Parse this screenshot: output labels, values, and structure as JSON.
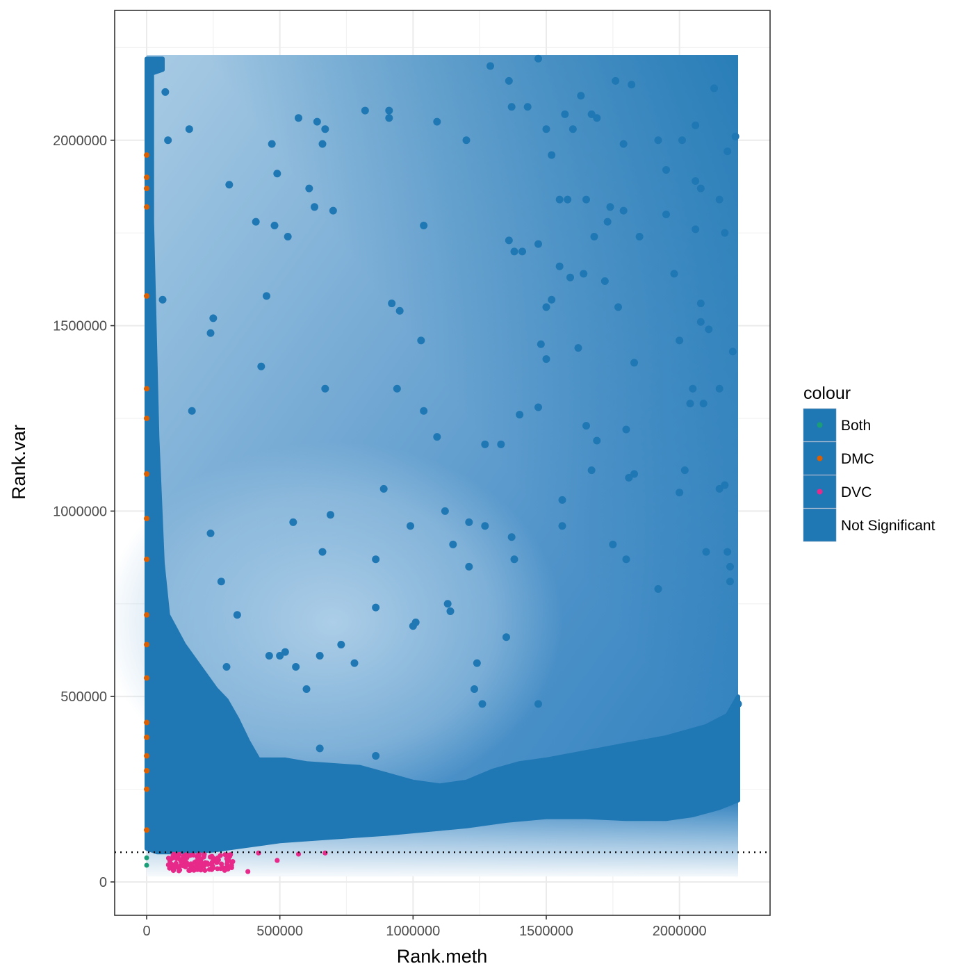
{
  "chart_data": {
    "type": "scatter",
    "title": "",
    "xlabel": "Rank.meth",
    "ylabel": "Rank.var",
    "xlim": [
      -120000,
      2340000
    ],
    "ylim": [
      -90000,
      2350000
    ],
    "x_ticks": [
      0,
      500000,
      1000000,
      1500000,
      2000000
    ],
    "x_tick_labels": [
      "0",
      "500000",
      "1000000",
      "1500000",
      "2000000"
    ],
    "y_ticks": [
      0,
      500000,
      1000000,
      1500000,
      2000000
    ],
    "y_tick_labels": [
      "0",
      "500000",
      "1000000",
      "1500000",
      "2000000"
    ],
    "grid": true,
    "threshold_line": {
      "y": 80000,
      "style": "dotted"
    },
    "density_region": {
      "x": [
        0,
        2220000
      ],
      "y": [
        15000,
        2230000
      ]
    },
    "legend": {
      "title": "colour",
      "placement": "right",
      "items": [
        {
          "label": "Both",
          "color": "#1b9e77"
        },
        {
          "label": "DMC",
          "color": "#d95f02"
        },
        {
          "label": "DVC",
          "color": "#e7298a"
        },
        {
          "label": "Not Significant",
          "color": "#1f78b4"
        }
      ]
    },
    "series": [
      {
        "name": "Not Significant",
        "color": "#1f78b4",
        "points": [
          [
            1290000,
            2200000
          ],
          [
            1470000,
            2220000
          ],
          [
            1360000,
            2160000
          ],
          [
            1370000,
            2090000
          ],
          [
            1430000,
            2090000
          ],
          [
            1630000,
            2120000
          ],
          [
            1570000,
            2070000
          ],
          [
            1600000,
            2030000
          ],
          [
            1500000,
            2030000
          ],
          [
            1520000,
            1960000
          ],
          [
            1670000,
            2070000
          ],
          [
            1690000,
            2060000
          ],
          [
            1760000,
            2160000
          ],
          [
            1820000,
            2150000
          ],
          [
            1790000,
            1990000
          ],
          [
            1920000,
            2000000
          ],
          [
            1950000,
            1920000
          ],
          [
            2010000,
            2000000
          ],
          [
            2060000,
            2040000
          ],
          [
            2130000,
            2140000
          ],
          [
            2210000,
            2010000
          ],
          [
            2180000,
            1970000
          ],
          [
            2060000,
            1890000
          ],
          [
            2080000,
            1870000
          ],
          [
            2150000,
            1840000
          ],
          [
            2170000,
            1750000
          ],
          [
            2060000,
            1760000
          ],
          [
            1950000,
            1800000
          ],
          [
            1850000,
            1740000
          ],
          [
            1790000,
            1810000
          ],
          [
            1740000,
            1820000
          ],
          [
            1650000,
            1840000
          ],
          [
            1550000,
            1840000
          ],
          [
            1580000,
            1840000
          ],
          [
            1680000,
            1740000
          ],
          [
            1730000,
            1780000
          ],
          [
            1590000,
            1630000
          ],
          [
            1500000,
            1550000
          ],
          [
            1520000,
            1570000
          ],
          [
            1470000,
            1720000
          ],
          [
            1410000,
            1700000
          ],
          [
            1360000,
            1730000
          ],
          [
            1380000,
            1700000
          ],
          [
            1550000,
            1660000
          ],
          [
            1640000,
            1640000
          ],
          [
            1720000,
            1620000
          ],
          [
            1770000,
            1550000
          ],
          [
            1620000,
            1440000
          ],
          [
            1480000,
            1450000
          ],
          [
            1500000,
            1410000
          ],
          [
            1470000,
            1280000
          ],
          [
            1400000,
            1260000
          ],
          [
            1330000,
            1180000
          ],
          [
            1270000,
            1180000
          ],
          [
            1650000,
            1230000
          ],
          [
            1690000,
            1190000
          ],
          [
            1670000,
            1110000
          ],
          [
            1800000,
            1220000
          ],
          [
            1830000,
            1400000
          ],
          [
            2000000,
            1460000
          ],
          [
            2080000,
            1560000
          ],
          [
            2110000,
            1490000
          ],
          [
            2080000,
            1510000
          ],
          [
            2150000,
            1330000
          ],
          [
            2040000,
            1290000
          ],
          [
            2090000,
            1290000
          ],
          [
            2050000,
            1330000
          ],
          [
            2150000,
            1060000
          ],
          [
            2170000,
            1070000
          ],
          [
            2000000,
            1050000
          ],
          [
            2020000,
            1110000
          ],
          [
            1830000,
            1100000
          ],
          [
            1810000,
            1090000
          ],
          [
            1980000,
            1640000
          ],
          [
            2200000,
            1430000
          ],
          [
            2190000,
            810000
          ],
          [
            2180000,
            890000
          ],
          [
            2100000,
            890000
          ],
          [
            2190000,
            850000
          ],
          [
            1750000,
            910000
          ],
          [
            1800000,
            870000
          ],
          [
            1920000,
            790000
          ],
          [
            1560000,
            1030000
          ],
          [
            1560000,
            960000
          ],
          [
            1370000,
            930000
          ],
          [
            1380000,
            870000
          ],
          [
            1470000,
            480000
          ],
          [
            1350000,
            660000
          ],
          [
            1240000,
            590000
          ],
          [
            1230000,
            520000
          ],
          [
            1260000,
            480000
          ],
          [
            1210000,
            970000
          ],
          [
            1270000,
            960000
          ],
          [
            1150000,
            910000
          ],
          [
            1210000,
            850000
          ],
          [
            1120000,
            1000000
          ],
          [
            1130000,
            750000
          ],
          [
            1140000,
            730000
          ],
          [
            990000,
            960000
          ],
          [
            1000000,
            690000
          ],
          [
            1010000,
            700000
          ],
          [
            1090000,
            1200000
          ],
          [
            1040000,
            1270000
          ],
          [
            1030000,
            1460000
          ],
          [
            1040000,
            1770000
          ],
          [
            950000,
            1540000
          ],
          [
            920000,
            1560000
          ],
          [
            940000,
            1330000
          ],
          [
            890000,
            1060000
          ],
          [
            860000,
            870000
          ],
          [
            860000,
            740000
          ],
          [
            780000,
            590000
          ],
          [
            730000,
            640000
          ],
          [
            660000,
            890000
          ],
          [
            690000,
            990000
          ],
          [
            670000,
            1330000
          ],
          [
            700000,
            1810000
          ],
          [
            630000,
            1820000
          ],
          [
            610000,
            1870000
          ],
          [
            670000,
            2030000
          ],
          [
            640000,
            2050000
          ],
          [
            570000,
            2060000
          ],
          [
            660000,
            1990000
          ],
          [
            820000,
            2080000
          ],
          [
            910000,
            2080000
          ],
          [
            910000,
            2060000
          ],
          [
            1090000,
            2050000
          ],
          [
            1200000,
            2000000
          ],
          [
            530000,
            1740000
          ],
          [
            490000,
            1910000
          ],
          [
            470000,
            1990000
          ],
          [
            480000,
            1770000
          ],
          [
            410000,
            1780000
          ],
          [
            310000,
            1880000
          ],
          [
            250000,
            1520000
          ],
          [
            240000,
            1480000
          ],
          [
            430000,
            1390000
          ],
          [
            450000,
            1580000
          ],
          [
            550000,
            970000
          ],
          [
            280000,
            810000
          ],
          [
            340000,
            720000
          ],
          [
            240000,
            940000
          ],
          [
            170000,
            1270000
          ],
          [
            60000,
            1570000
          ],
          [
            160000,
            2030000
          ],
          [
            80000,
            2000000
          ],
          [
            70000,
            2130000
          ],
          [
            460000,
            610000
          ],
          [
            500000,
            610000
          ],
          [
            520000,
            620000
          ],
          [
            560000,
            580000
          ],
          [
            600000,
            520000
          ],
          [
            650000,
            610000
          ],
          [
            300000,
            580000
          ],
          [
            650000,
            360000
          ],
          [
            860000,
            340000
          ],
          [
            2220000,
            480000
          ],
          [
            2210000,
            430000
          ]
        ]
      }
    ]
  }
}
